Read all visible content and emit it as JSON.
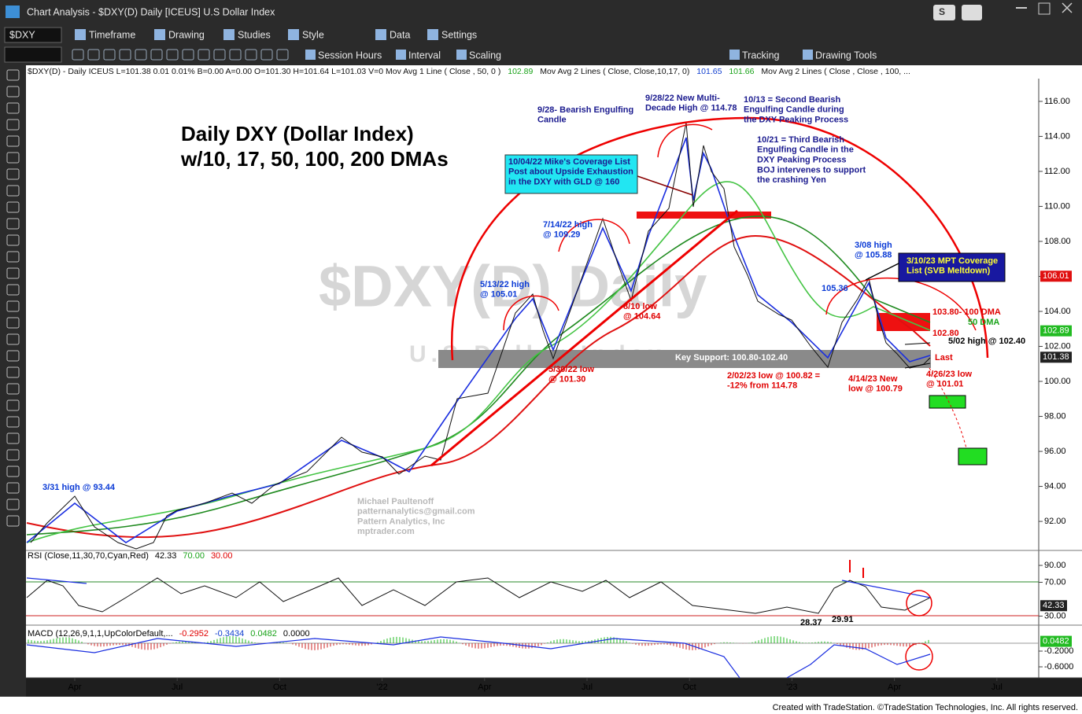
{
  "window": {
    "title": "Chart Analysis - $DXY(D) Daily [ICEUS] U.S Dollar Index",
    "link_button": "S"
  },
  "toolbar": {
    "symbol": "$DXY",
    "items": [
      "Timeframe",
      "Drawing",
      "Studies",
      "Style",
      "Data",
      "Settings"
    ],
    "items2": [
      "Session Hours",
      "Interval",
      "Scaling",
      "Tracking",
      "Drawing Tools"
    ]
  },
  "status_line": [
    "$DXY(D) - Daily  ICEUS  L=101.38  0.01  0.01%  B=0.00  A=0.00  O=101.30  H=101.64  L=101.03  V=0  Mov Avg 1 Line (    Close , 50,     0 )",
    "102.89",
    "Mov Avg 2 Lines (  Close,  Close,10,17,  0)",
    "101.65",
    "101.66",
    "Mov Avg 2 Lines (      Close ,       Close ,   100, ..."
  ],
  "chart": {
    "watermark": [
      "$DXY(D) Daily",
      "U.S Dollar Index"
    ],
    "title": [
      "Daily DXY (Dollar Index)",
      "w/10, 17, 50, 100, 200 DMAs"
    ],
    "price_axis": {
      "ylim": [
        90.34,
        117.3
      ],
      "yticks": [
        {
          "value": 92,
          "label": "92.00"
        },
        {
          "value": 94,
          "label": "94.00"
        },
        {
          "value": 96,
          "label": "96.00"
        },
        {
          "value": 98,
          "label": "98.00"
        },
        {
          "value": 100,
          "label": "100.00"
        },
        {
          "value": 102,
          "label": "102.00"
        },
        {
          "value": 104,
          "label": "104.00"
        },
        {
          "value": 106,
          "label": "106.00"
        },
        {
          "value": 108,
          "label": "108.00"
        },
        {
          "value": 110,
          "label": "110.00"
        },
        {
          "value": 112,
          "label": "112.00"
        },
        {
          "value": 114,
          "label": "114.00"
        },
        {
          "value": 116,
          "label": "116.00"
        }
      ],
      "tags": [
        {
          "value": 106.01,
          "color": "#e01010"
        },
        {
          "value": 102.89,
          "color": "#22bb22"
        },
        {
          "value": 101.38,
          "color": "#222222"
        }
      ]
    },
    "rsi": {
      "label": "RSI (Close,11,30,70,Cyan,Red)",
      "readings": [
        "42.33",
        "70.00",
        "30.00"
      ],
      "ylim": [
        19.3,
        107.7
      ],
      "yticks": [
        {
          "value": 90,
          "label": "90.00"
        },
        {
          "value": 70,
          "label": "70.00"
        },
        {
          "value": 30,
          "label": "30.00"
        }
      ],
      "tag": 42.33,
      "lows": [
        "28.37",
        "29.91"
      ]
    },
    "macd": {
      "label": "MACD (12,26,9,1,1,UpColorDefault,...",
      "readings": [
        "-0.2952",
        "-0.3434",
        "0.0482",
        "0.0000"
      ],
      "ylim": [
        -0.88,
        0.46
      ],
      "yticks": [
        {
          "value": -0.2,
          "label": "-0.2000"
        },
        {
          "value": -0.6,
          "label": "-0.6000"
        }
      ],
      "tag": 0.0482
    },
    "x_labels": [
      "Apr",
      "Jul",
      "Oct",
      "'22",
      "Apr",
      "Jul",
      "Oct",
      "'23",
      "Apr",
      "Jul"
    ],
    "annotations": [
      {
        "lines": [
          "9/28- Bearish Engulfing",
          "Candle"
        ]
      },
      {
        "lines": [
          "9/28/22 New Multi-",
          "Decade High @ 114.78"
        ]
      },
      {
        "lines": [
          "10/13 = Second Bearish",
          "Engulfing Candle during",
          "the DXY Peaking Process"
        ]
      },
      {
        "lines": [
          "10/21 = Third Bearish",
          "Engulfing Candle in the",
          "DXY Peaking Process",
          "BOJ intervenes to support",
          "the crashing Yen"
        ]
      },
      {
        "lines": [
          "10/04/22 Mike's Coverage List",
          "Post about Upside Exhaustion",
          "in the DXY with GLD @ 160"
        ]
      },
      {
        "lines": [
          "7/14/22 high",
          "@ 109.29"
        ]
      },
      {
        "lines": [
          "5/13/22 high",
          "@ 105.01"
        ]
      },
      {
        "lines": [
          "8/10 low",
          "@ 104.64"
        ]
      },
      {
        "lines": [
          "5/30/22 low",
          "@ 101.30"
        ]
      },
      {
        "lines": [
          "Key Support: 100.80-102.40"
        ]
      },
      {
        "lines": [
          "2/02/23 low @ 100.82 =",
          "-12% from 114.78"
        ]
      },
      {
        "lines": [
          "4/14/23 New",
          "low @ 100.79"
        ]
      },
      {
        "lines": [
          "4/26/23 low",
          "@ 101.01"
        ]
      },
      {
        "lines": [
          "3/08 high",
          "@ 105.88"
        ]
      },
      {
        "lines": [
          "3/10/23 MPT Coverage",
          "List (SVB Meltdown)"
        ]
      },
      {
        "lines": [
          "105.36"
        ]
      },
      {
        "lines": [
          "103.80- 100 DMA"
        ]
      },
      {
        "lines": [
          "50 DMA"
        ]
      },
      {
        "lines": [
          "102.80"
        ]
      },
      {
        "lines": [
          "5/02 high @ 102.40"
        ]
      },
      {
        "lines": [
          "Last"
        ]
      },
      {
        "lines": [
          "3/31 high @ 93.44"
        ]
      }
    ],
    "credit": [
      "Michael Paultenoff",
      "patternanalytics@gmail.com",
      "Pattern Analytics, Inc",
      "mptrader.com"
    ]
  },
  "footer": "Created with TradeStation. ©TradeStation Technologies, Inc. All rights reserved."
}
